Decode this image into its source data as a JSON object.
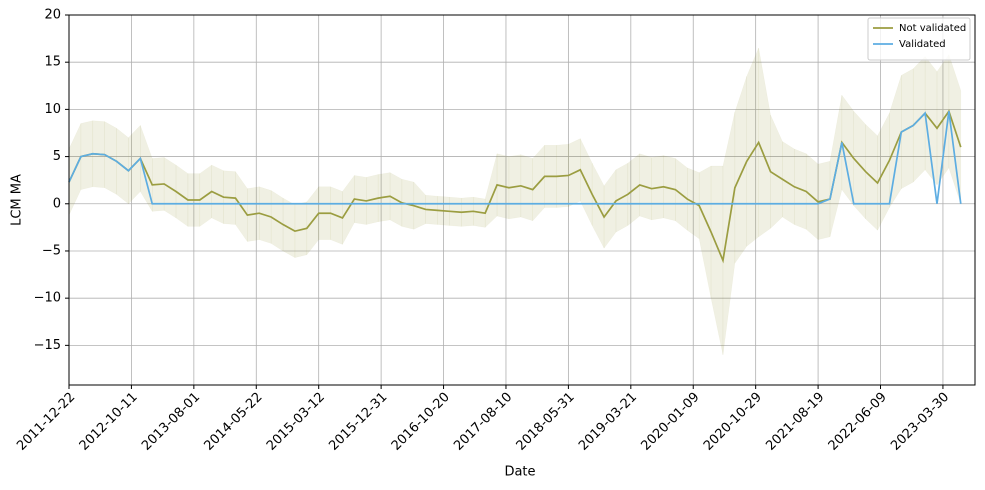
{
  "chart_data": {
    "type": "line",
    "x_label": "Date",
    "y_label": "LCM MA",
    "x": [
      "2011-12-22",
      "2012-02-16",
      "2012-04-12",
      "2012-06-07",
      "2012-08-02",
      "2012-09-27",
      "2012-11-22",
      "2013-01-17",
      "2013-03-14",
      "2013-05-09",
      "2013-07-04",
      "2013-08-29",
      "2013-10-24",
      "2013-12-19",
      "2014-02-13",
      "2014-04-10",
      "2014-06-05",
      "2014-07-31",
      "2014-09-25",
      "2014-11-20",
      "2015-01-15",
      "2015-03-12",
      "2015-05-07",
      "2015-07-02",
      "2015-08-27",
      "2015-10-22",
      "2015-12-17",
      "2016-02-11",
      "2016-04-07",
      "2016-06-02",
      "2016-07-28",
      "2016-09-22",
      "2016-11-17",
      "2017-01-12",
      "2017-03-09",
      "2017-05-04",
      "2017-06-29",
      "2017-08-24",
      "2017-10-19",
      "2017-12-14",
      "2018-02-08",
      "2018-04-05",
      "2018-05-31",
      "2018-07-26",
      "2018-09-20",
      "2018-11-15",
      "2019-01-10",
      "2019-03-07",
      "2019-05-02",
      "2019-06-27",
      "2019-08-22",
      "2019-10-17",
      "2019-12-12",
      "2020-02-06",
      "2020-04-02",
      "2020-05-28",
      "2020-07-23",
      "2020-09-17",
      "2020-11-12",
      "2021-01-07",
      "2021-03-04",
      "2021-04-29",
      "2021-06-24",
      "2021-08-19",
      "2021-10-14",
      "2021-12-09",
      "2022-02-03",
      "2022-03-31",
      "2022-05-26",
      "2022-07-21",
      "2022-09-15",
      "2022-11-10",
      "2023-01-05",
      "2023-03-02",
      "2023-04-27",
      "2023-06-22"
    ],
    "series": [
      {
        "name": "Not validated",
        "color": "#9b9d41",
        "band_color": "#9b9d41",
        "values": [
          2.3,
          5,
          5.3,
          5.2,
          4.5,
          3.5,
          4.8,
          2,
          2.1,
          1.3,
          0.4,
          0.4,
          1.3,
          0.7,
          0.6,
          -1.2,
          -1,
          -1.4,
          -2.2,
          -2.9,
          -2.6,
          -1,
          -1,
          -1.5,
          0.5,
          0.3,
          0.6,
          0.8,
          0.1,
          -0.2,
          -0.6,
          -0.7,
          -0.8,
          -0.9,
          -0.8,
          -1,
          2,
          1.7,
          1.9,
          1.5,
          2.9,
          2.9,
          3,
          3.6,
          1,
          -1.4,
          0.3,
          1,
          2,
          1.6,
          1.8,
          1.5,
          0.5,
          -0.2,
          -3,
          -6,
          1.7,
          4.5,
          6.5,
          3.4,
          2.6,
          1.8,
          1.3,
          0.2,
          0.5,
          6.5,
          4.8,
          3.4,
          2.2,
          4.6,
          7.6,
          8.3,
          9.6,
          8,
          9.8,
          6
        ],
        "lower": [
          -1.2,
          1.5,
          1.8,
          1.7,
          1,
          0,
          1.3,
          -0.8,
          -0.7,
          -1.5,
          -2.4,
          -2.4,
          -1.5,
          -2.1,
          -2.2,
          -4,
          -3.8,
          -4.2,
          -5,
          -5.7,
          -5.4,
          -3.8,
          -3.8,
          -4.3,
          -2,
          -2.2,
          -1.9,
          -1.7,
          -2.4,
          -2.7,
          -2.1,
          -2.2,
          -2.3,
          -2.4,
          -2.3,
          -2.5,
          -1.3,
          -1.6,
          -1.4,
          -1.8,
          -0.4,
          -0.4,
          -0.3,
          0.3,
          -2.3,
          -4.7,
          -3,
          -2.3,
          -1.3,
          -1.7,
          -1.5,
          -1.8,
          -2.8,
          -3.7,
          -10,
          -16,
          -6.3,
          -4.5,
          -3.5,
          -2.6,
          -1.4,
          -2.2,
          -2.7,
          -3.8,
          -3.5,
          1.5,
          -0.2,
          -1.6,
          -2.8,
          -0.4,
          1.6,
          2.3,
          3.6,
          2,
          3.8,
          0
        ],
        "upper": [
          5.8,
          8.5,
          8.8,
          8.7,
          8,
          7,
          8.3,
          4.8,
          4.9,
          4.1,
          3.2,
          3.2,
          4.1,
          3.5,
          3.4,
          1.6,
          1.8,
          1.4,
          0.6,
          -0.1,
          0.2,
          1.8,
          1.8,
          1.3,
          3,
          2.8,
          3.1,
          3.3,
          2.6,
          2.3,
          0.9,
          0.8,
          0.7,
          0.6,
          0.7,
          0.5,
          5.3,
          5,
          5.2,
          4.8,
          6.2,
          6.2,
          6.3,
          6.9,
          4.3,
          1.9,
          3.6,
          4.3,
          5.3,
          4.9,
          5.1,
          4.8,
          3.8,
          3.3,
          4,
          4,
          9.7,
          13.5,
          16.5,
          9.4,
          6.6,
          5.8,
          5.3,
          4.2,
          4.5,
          11.5,
          9.8,
          8.4,
          7.2,
          9.6,
          13.6,
          14.3,
          15.6,
          14,
          15.8,
          12
        ]
      },
      {
        "name": "Validated",
        "color": "#5dade2",
        "values": [
          2.3,
          5,
          5.3,
          5.2,
          4.5,
          3.5,
          4.8,
          0,
          0,
          0,
          0,
          0,
          0,
          0,
          0,
          0,
          0,
          0,
          0,
          0,
          0,
          0,
          0,
          0,
          0,
          0,
          0,
          0,
          0,
          0,
          0,
          0,
          0,
          0,
          0,
          0,
          0,
          0,
          0,
          0,
          0,
          0,
          0,
          0,
          0,
          0,
          0,
          0,
          0,
          0,
          0,
          0,
          0,
          0,
          0,
          0,
          0,
          0,
          0,
          0,
          0,
          0,
          0,
          0,
          0.5,
          6.5,
          0,
          0,
          0,
          0,
          7.6,
          8.3,
          9.6,
          0,
          9.8,
          0
        ]
      }
    ],
    "xlim": [
      "2011-12-22",
      "2023-08-28"
    ],
    "xticks": [
      "2011-12-22",
      "2012-10-11",
      "2013-08-01",
      "2014-05-22",
      "2015-03-12",
      "2015-12-31",
      "2016-10-20",
      "2017-08-10",
      "2018-05-31",
      "2019-03-21",
      "2020-01-09",
      "2020-10-29",
      "2021-08-19",
      "2022-06-09",
      "2023-03-30"
    ],
    "ylim": [
      -19.2,
      20
    ],
    "yticks": [
      {
        "value": -15,
        "label": "−15"
      },
      {
        "value": -10,
        "label": "−10"
      },
      {
        "value": -5,
        "label": "−5"
      },
      0,
      5,
      10,
      15,
      20
    ],
    "grid": true,
    "legend": "upper right"
  }
}
